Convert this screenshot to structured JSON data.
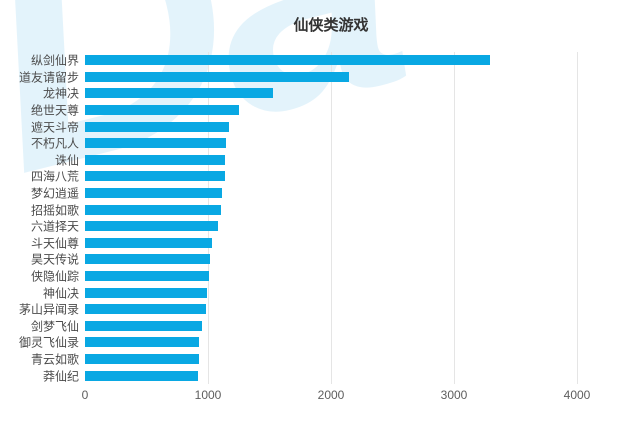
{
  "title": "仙侠类游戏",
  "watermark": {
    "text": "Da",
    "color": "rgba(80,180,230,0.16)"
  },
  "chart_data": {
    "type": "bar",
    "orientation": "horizontal",
    "title": "仙侠类游戏",
    "categories": [
      "纵剑仙界",
      "道友请留步",
      "龙神决",
      "绝世天尊",
      "遮天斗帝",
      "不朽凡人",
      "诛仙",
      "四海八荒",
      "梦幻逍遥",
      "招摇如歌",
      "六道择天",
      "斗天仙尊",
      "昊天传说",
      "侠隐仙踪",
      "神仙决",
      "茅山异闻录",
      "剑梦飞仙",
      "御灵飞仙录",
      "青云如歌",
      "莽仙纪"
    ],
    "values": [
      3290,
      2150,
      1530,
      1250,
      1170,
      1145,
      1140,
      1135,
      1115,
      1105,
      1080,
      1035,
      1015,
      1005,
      990,
      980,
      950,
      930,
      925,
      915
    ],
    "xlabel": "",
    "ylabel": "",
    "xlim": [
      0,
      4000
    ],
    "x_ticks": [
      0,
      1000,
      2000,
      3000,
      4000
    ],
    "x_tick_labels": [
      "0",
      "1000",
      "2000",
      "3000",
      "4000"
    ],
    "bar_color": "#09a8e3",
    "grid": true,
    "gridline_color": "#e5e5e5",
    "legend": false,
    "label_color": "#4b4b4b",
    "tick_color": "#5e5e5e",
    "title_color": "#333333"
  }
}
